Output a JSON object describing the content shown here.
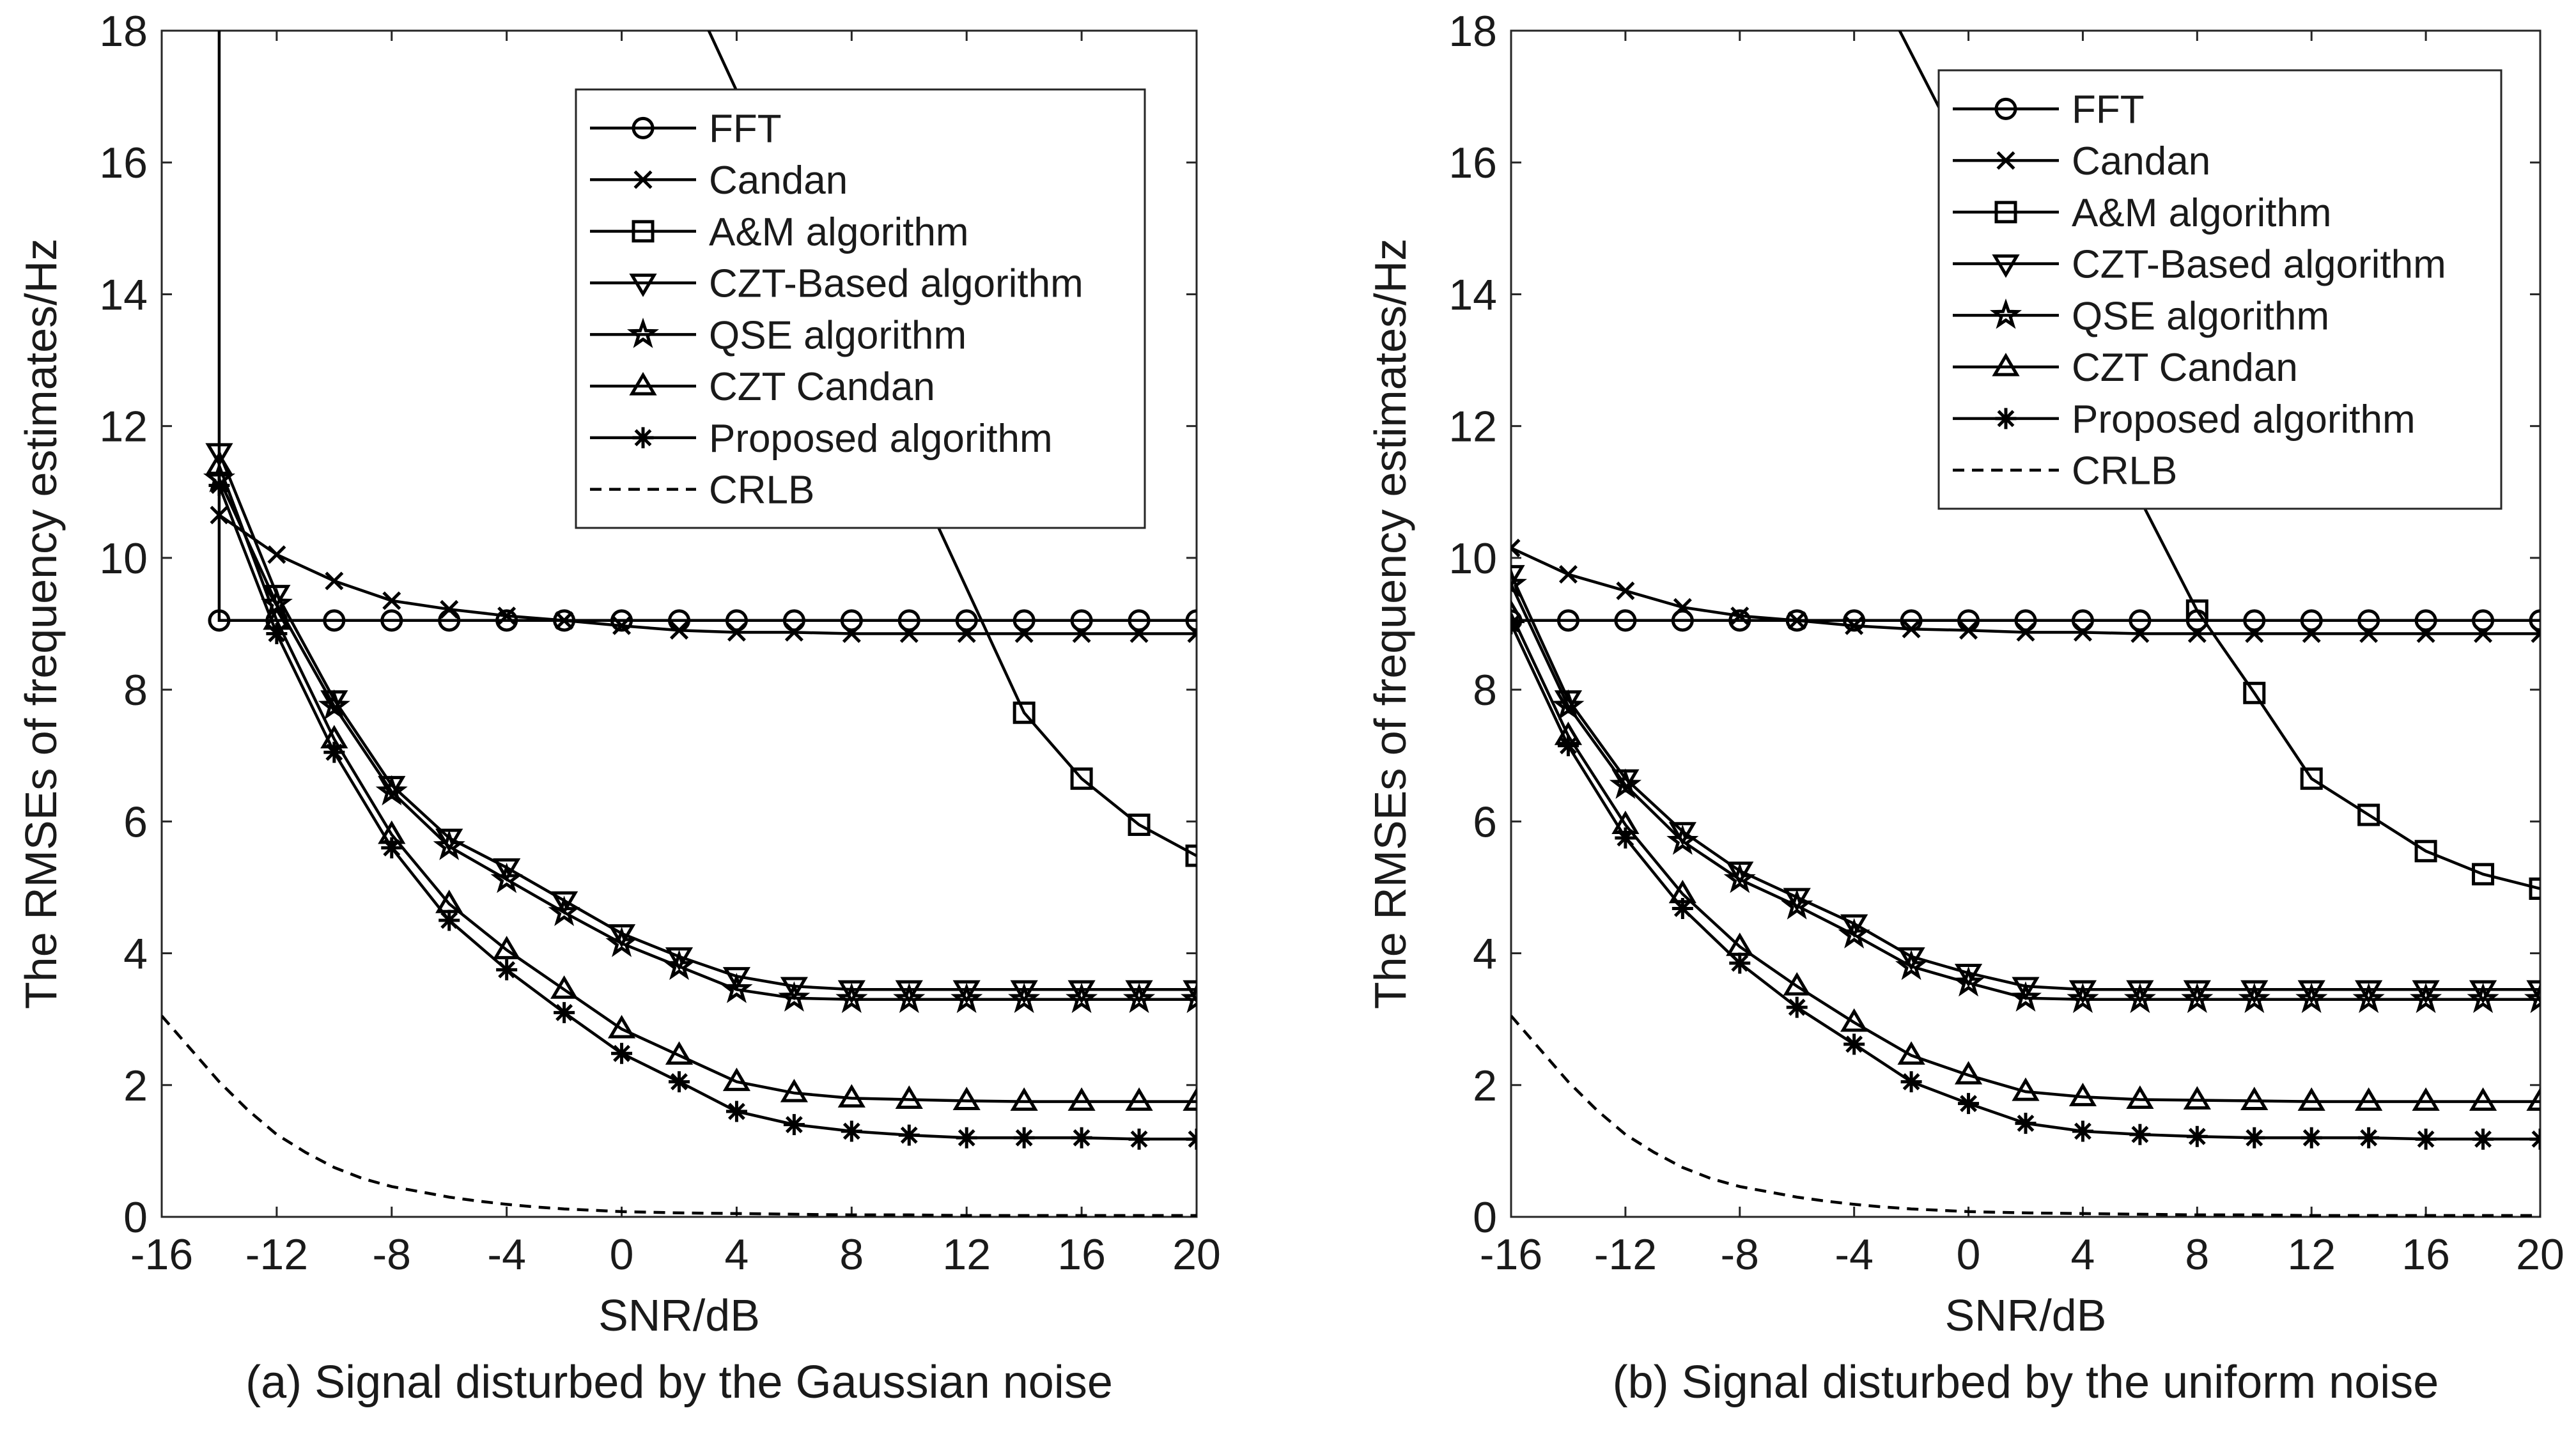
{
  "chart_data": [
    {
      "type": "line",
      "caption": "(a) Signal disturbed by the Gaussian noise",
      "xlabel": "SNR/dB",
      "ylabel": "The RMSEs of frequency estimates/Hz",
      "xlim": [
        -16,
        20
      ],
      "ylim": [
        0,
        18
      ],
      "xticks": [
        "-16",
        "-12",
        "-8",
        "-4",
        "0",
        "4",
        "8",
        "12",
        "16",
        "20"
      ],
      "yticks": [
        "0",
        "2",
        "4",
        "6",
        "8",
        "10",
        "12",
        "14",
        "16",
        "18"
      ],
      "grid": false,
      "legend_position": "top-right",
      "series": [
        {
          "name": "FFT",
          "marker": "circle",
          "x": [
            -14,
            -14,
            -12,
            -10,
            -8,
            -6,
            -4,
            -2,
            0,
            2,
            4,
            6,
            8,
            10,
            12,
            14,
            16,
            18,
            20
          ],
          "y": [
            18.5,
            9.05,
            9.05,
            9.05,
            9.05,
            9.05,
            9.05,
            9.05,
            9.05,
            9.05,
            9.05,
            9.05,
            9.05,
            9.05,
            9.05,
            9.05,
            9.05,
            9.05,
            9.05
          ],
          "markers_from": 1
        },
        {
          "name": "Candan",
          "marker": "x",
          "x": [
            -14,
            -12,
            -10,
            -8,
            -6,
            -4,
            -2,
            0,
            2,
            4,
            6,
            8,
            10,
            12,
            14,
            16,
            18,
            20
          ],
          "y": [
            10.65,
            10.05,
            9.65,
            9.35,
            9.22,
            9.12,
            9.05,
            8.97,
            8.9,
            8.87,
            8.87,
            8.85,
            8.85,
            8.85,
            8.85,
            8.85,
            8.85,
            8.85
          ]
        },
        {
          "name": "A&M algorithm",
          "marker": "square",
          "x": [
            2.5,
            14,
            16,
            18,
            20
          ],
          "y": [
            18.5,
            7.65,
            6.65,
            5.95,
            5.48
          ],
          "markers_from": 1
        },
        {
          "name": "CZT-Based algorithm",
          "marker": "triangle-down",
          "x": [
            -14,
            -12,
            -10,
            -8,
            -6,
            -4,
            -2,
            0,
            2,
            4,
            6,
            8,
            10,
            12,
            14,
            16,
            18,
            20
          ],
          "y": [
            11.6,
            9.45,
            7.85,
            6.55,
            5.75,
            5.3,
            4.8,
            4.3,
            3.95,
            3.65,
            3.5,
            3.45,
            3.45,
            3.45,
            3.45,
            3.45,
            3.45,
            3.45
          ]
        },
        {
          "name": "QSE algorithm",
          "marker": "star",
          "x": [
            -14,
            -12,
            -10,
            -8,
            -6,
            -4,
            -2,
            0,
            2,
            4,
            6,
            8,
            10,
            12,
            14,
            16,
            18,
            20
          ],
          "y": [
            11.2,
            9.3,
            7.75,
            6.45,
            5.62,
            5.12,
            4.62,
            4.15,
            3.8,
            3.45,
            3.32,
            3.3,
            3.3,
            3.3,
            3.3,
            3.3,
            3.3,
            3.3
          ]
        },
        {
          "name": "CZT Candan",
          "marker": "triangle-up",
          "x": [
            -14,
            -12,
            -10,
            -8,
            -6,
            -4,
            -2,
            0,
            2,
            4,
            6,
            8,
            10,
            12,
            14,
            16,
            18,
            20
          ],
          "y": [
            11.4,
            9.05,
            7.25,
            5.8,
            4.75,
            4.05,
            3.45,
            2.85,
            2.45,
            2.05,
            1.88,
            1.8,
            1.78,
            1.76,
            1.75,
            1.75,
            1.75,
            1.75
          ]
        },
        {
          "name": "Proposed algorithm",
          "marker": "asterisk",
          "x": [
            -14,
            -12,
            -10,
            -8,
            -6,
            -4,
            -2,
            0,
            2,
            4,
            6,
            8,
            10,
            12,
            14,
            16,
            18,
            20
          ],
          "y": [
            11.1,
            8.85,
            7.05,
            5.6,
            4.5,
            3.75,
            3.1,
            2.48,
            2.05,
            1.6,
            1.4,
            1.3,
            1.24,
            1.2,
            1.2,
            1.2,
            1.18,
            1.18
          ]
        },
        {
          "name": "CRLB",
          "marker": "none",
          "dashed": true,
          "x": [
            -16,
            -15,
            -14,
            -13,
            -12,
            -11,
            -10,
            -9,
            -8,
            -7,
            -6,
            -5,
            -4,
            -3,
            -2,
            -1,
            0,
            2,
            4,
            6,
            8,
            10,
            12,
            14,
            16,
            18,
            20
          ],
          "y": [
            3.05,
            2.55,
            2.05,
            1.62,
            1.25,
            0.98,
            0.75,
            0.58,
            0.46,
            0.38,
            0.3,
            0.24,
            0.19,
            0.15,
            0.12,
            0.1,
            0.08,
            0.06,
            0.05,
            0.04,
            0.03,
            0.03,
            0.02,
            0.02,
            0.02,
            0.02,
            0.02
          ]
        }
      ]
    },
    {
      "type": "line",
      "caption": "(b) Signal disturbed by the uniform noise",
      "xlabel": "SNR/dB",
      "ylabel": "The RMSEs of frequency estimates/Hz",
      "xlim": [
        -16,
        20
      ],
      "ylim": [
        0,
        18
      ],
      "xticks": [
        "-16",
        "-12",
        "-8",
        "-4",
        "0",
        "4",
        "8",
        "12",
        "16",
        "20"
      ],
      "yticks": [
        "0",
        "2",
        "4",
        "6",
        "8",
        "10",
        "12",
        "14",
        "16",
        "18"
      ],
      "grid": false,
      "legend_position": "top-right",
      "series": [
        {
          "name": "FFT",
          "marker": "circle",
          "x": [
            -16,
            -14,
            -12,
            -10,
            -8,
            -6,
            -4,
            -2,
            0,
            2,
            4,
            6,
            8,
            10,
            12,
            14,
            16,
            18,
            20
          ],
          "y": [
            9.05,
            9.05,
            9.05,
            9.05,
            9.05,
            9.05,
            9.05,
            9.05,
            9.05,
            9.05,
            9.05,
            9.05,
            9.05,
            9.05,
            9.05,
            9.05,
            9.05,
            9.05,
            9.05
          ]
        },
        {
          "name": "Candan",
          "marker": "x",
          "x": [
            -16,
            -14,
            -12,
            -10,
            -8,
            -6,
            -4,
            -2,
            0,
            2,
            4,
            6,
            8,
            10,
            12,
            14,
            16,
            18,
            20
          ],
          "y": [
            10.15,
            9.75,
            9.5,
            9.25,
            9.12,
            9.05,
            8.97,
            8.92,
            8.9,
            8.87,
            8.87,
            8.85,
            8.85,
            8.85,
            8.85,
            8.85,
            8.85,
            8.85,
            8.85
          ]
        },
        {
          "name": "A&M algorithm",
          "marker": "square",
          "x": [
            -3,
            8,
            10,
            12,
            14,
            16,
            18,
            20
          ],
          "y": [
            18.5,
            9.2,
            7.95,
            6.65,
            6.1,
            5.55,
            5.2,
            4.98
          ],
          "markers_from": 1
        },
        {
          "name": "CZT-Based algorithm",
          "marker": "triangle-down",
          "x": [
            -16,
            -14,
            -12,
            -10,
            -8,
            -6,
            -4,
            -2,
            0,
            2,
            4,
            6,
            8,
            10,
            12,
            14,
            16,
            18,
            20
          ],
          "y": [
            9.75,
            7.85,
            6.65,
            5.85,
            5.25,
            4.85,
            4.45,
            3.95,
            3.7,
            3.5,
            3.45,
            3.45,
            3.45,
            3.45,
            3.45,
            3.45,
            3.45,
            3.45,
            3.45
          ]
        },
        {
          "name": "QSE algorithm",
          "marker": "star",
          "x": [
            -16,
            -14,
            -12,
            -10,
            -8,
            -6,
            -4,
            -2,
            0,
            2,
            4,
            6,
            8,
            10,
            12,
            14,
            16,
            18,
            20
          ],
          "y": [
            9.6,
            7.75,
            6.55,
            5.7,
            5.12,
            4.72,
            4.28,
            3.8,
            3.55,
            3.32,
            3.3,
            3.3,
            3.3,
            3.3,
            3.3,
            3.3,
            3.3,
            3.3,
            3.3
          ]
        },
        {
          "name": "CZT Candan",
          "marker": "triangle-up",
          "x": [
            -16,
            -14,
            -12,
            -10,
            -8,
            -6,
            -4,
            -2,
            0,
            2,
            4,
            6,
            8,
            10,
            12,
            14,
            16,
            18,
            20
          ],
          "y": [
            9.15,
            7.3,
            5.95,
            4.9,
            4.1,
            3.5,
            2.95,
            2.45,
            2.15,
            1.9,
            1.82,
            1.78,
            1.77,
            1.76,
            1.75,
            1.75,
            1.75,
            1.75,
            1.75
          ]
        },
        {
          "name": "Proposed algorithm",
          "marker": "asterisk",
          "x": [
            -16,
            -14,
            -12,
            -10,
            -8,
            -6,
            -4,
            -2,
            0,
            2,
            4,
            6,
            8,
            10,
            12,
            14,
            16,
            18,
            20
          ],
          "y": [
            9.0,
            7.15,
            5.75,
            4.68,
            3.85,
            3.18,
            2.62,
            2.05,
            1.72,
            1.42,
            1.3,
            1.25,
            1.22,
            1.2,
            1.2,
            1.2,
            1.18,
            1.18,
            1.18
          ]
        },
        {
          "name": "CRLB",
          "marker": "none",
          "dashed": true,
          "x": [
            -16,
            -15,
            -14,
            -13,
            -12,
            -11,
            -10,
            -9,
            -8,
            -7,
            -6,
            -5,
            -4,
            -3,
            -2,
            -1,
            0,
            2,
            4,
            6,
            8,
            10,
            12,
            14,
            16,
            18,
            20
          ],
          "y": [
            3.05,
            2.55,
            2.05,
            1.62,
            1.25,
            0.98,
            0.75,
            0.58,
            0.46,
            0.38,
            0.3,
            0.24,
            0.19,
            0.15,
            0.12,
            0.1,
            0.08,
            0.06,
            0.05,
            0.04,
            0.03,
            0.03,
            0.02,
            0.02,
            0.02,
            0.02,
            0.02
          ]
        }
      ]
    }
  ]
}
